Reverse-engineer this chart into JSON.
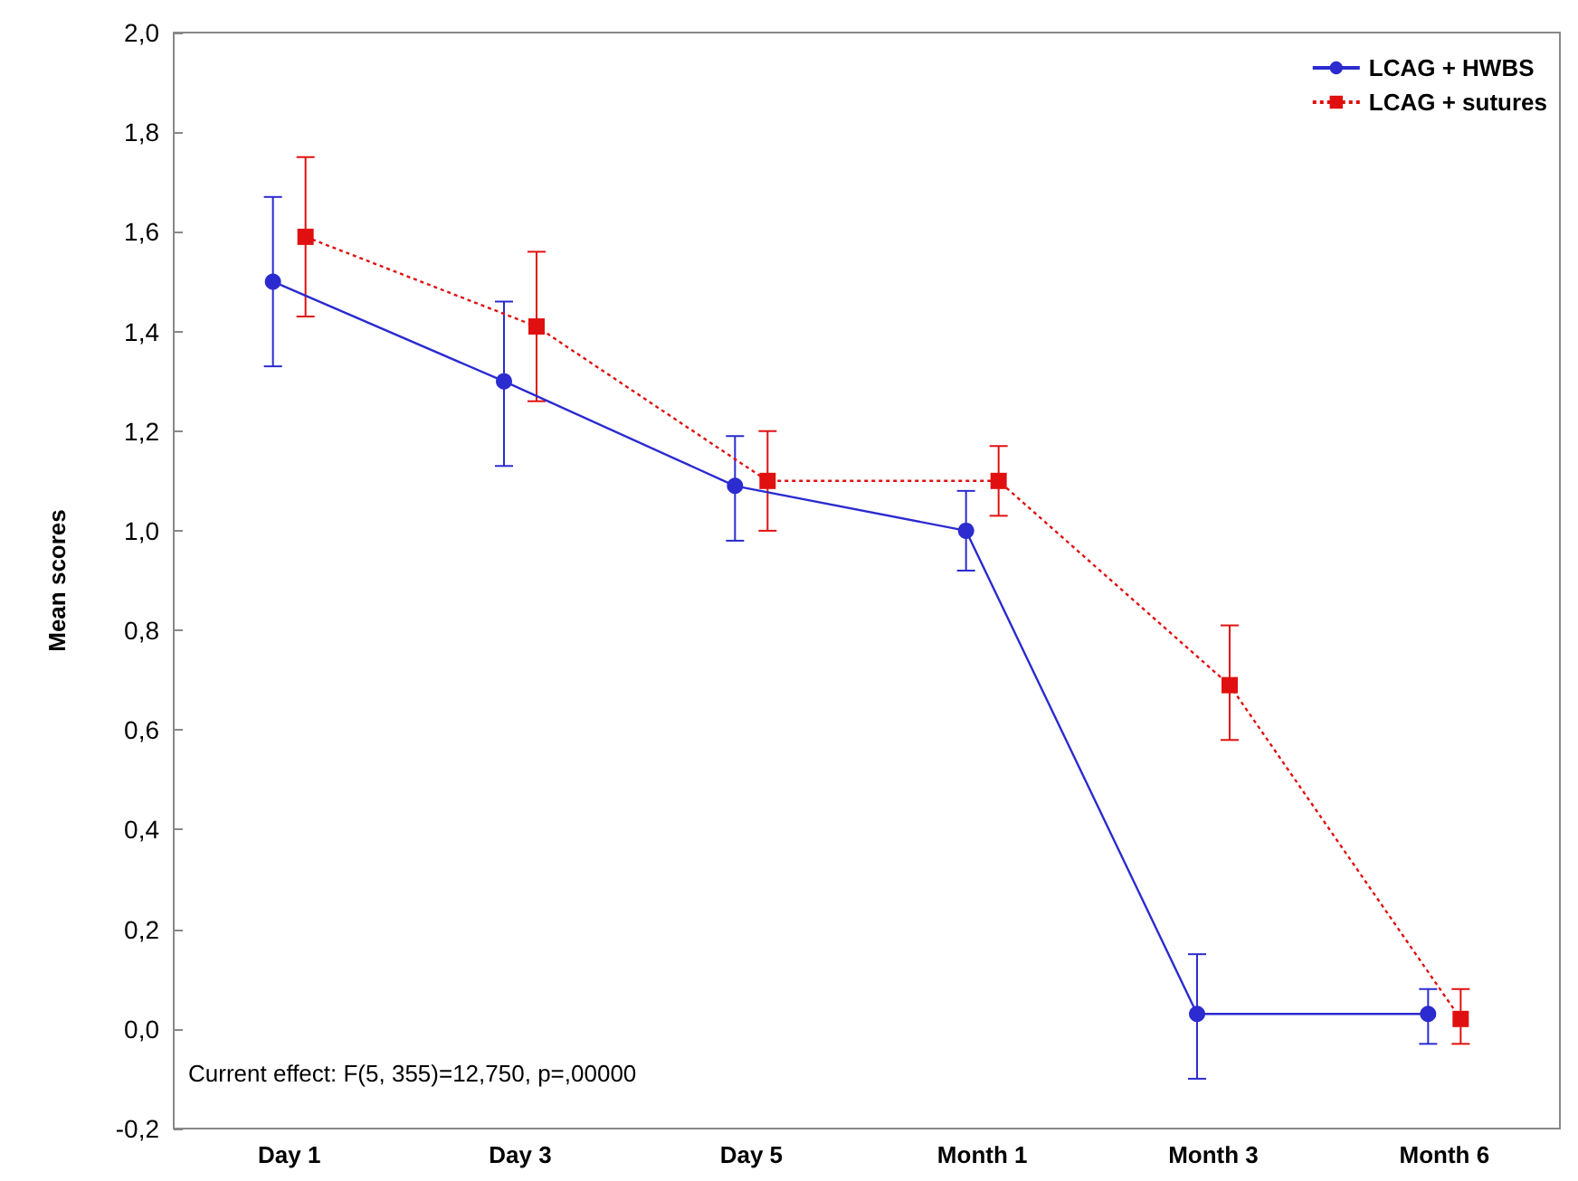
{
  "chart_data": {
    "type": "line",
    "ylabel": "Mean scores",
    "categories": [
      "Day 1",
      "Day 3",
      "Day 5",
      "Month 1",
      "Month 3",
      "Month 6"
    ],
    "series": [
      {
        "name": "LCAG + HWBS",
        "color": "#2b2bd0",
        "marker": "circle",
        "line_style": "solid",
        "values": [
          1.5,
          1.3,
          1.09,
          1.0,
          0.03,
          0.03
        ],
        "errors": [
          [
            1.33,
            1.67
          ],
          [
            1.13,
            1.46
          ],
          [
            0.98,
            1.19
          ],
          [
            0.92,
            1.08
          ],
          [
            -0.1,
            0.15
          ],
          [
            -0.03,
            0.08
          ]
        ]
      },
      {
        "name": "LCAG + sutures",
        "color": "#e01010",
        "marker": "square",
        "line_style": "dotted",
        "values": [
          1.59,
          1.41,
          1.1,
          1.1,
          0.69,
          0.02
        ],
        "errors": [
          [
            1.43,
            1.75
          ],
          [
            1.26,
            1.56
          ],
          [
            1.0,
            1.2
          ],
          [
            1.03,
            1.17
          ],
          [
            0.58,
            0.81
          ],
          [
            -0.03,
            0.08
          ]
        ]
      }
    ],
    "ylim": [
      -0.2,
      2.0
    ],
    "yticks": [
      {
        "value": -0.2,
        "label": "-0,2"
      },
      {
        "value": 0.0,
        "label": "0,0"
      },
      {
        "value": 0.2,
        "label": "0,2"
      },
      {
        "value": 0.4,
        "label": "0,4"
      },
      {
        "value": 0.6,
        "label": "0,6"
      },
      {
        "value": 0.8,
        "label": "0,8"
      },
      {
        "value": 1.0,
        "label": "1,0"
      },
      {
        "value": 1.2,
        "label": "1,2"
      },
      {
        "value": 1.4,
        "label": "1,4"
      },
      {
        "value": 1.6,
        "label": "1,6"
      },
      {
        "value": 1.8,
        "label": "1,8"
      },
      {
        "value": 2.0,
        "label": "2,0"
      }
    ],
    "grid": false,
    "legend": "top right",
    "annotations": [
      "Current effect: F(5, 355)=12,750, p=,00000"
    ]
  }
}
